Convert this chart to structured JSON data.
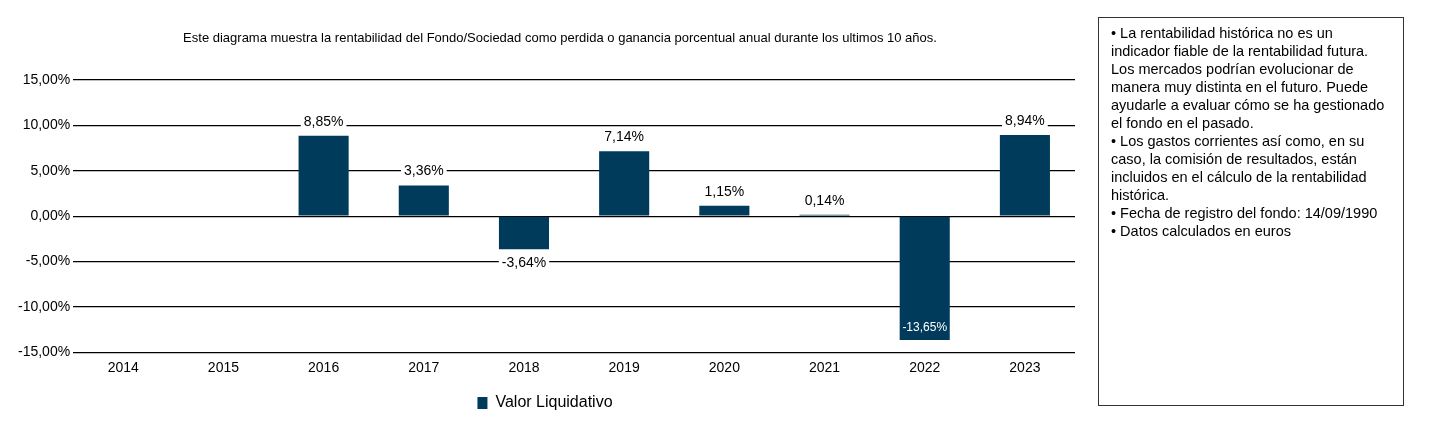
{
  "chart_data": {
    "type": "bar",
    "title": "Este diagrama  muestra la rentabilidad  del Fondo/Sociedad como perdida  o ganancia  porcentual anual  durante los ultimos 10 años.",
    "categories": [
      "2014",
      "2015",
      "2016",
      "2017",
      "2018",
      "2019",
      "2020",
      "2021",
      "2022",
      "2023"
    ],
    "series": [
      {
        "name": "Valor Liquidativo",
        "color": "#003b5c",
        "values": [
          null,
          null,
          8.85,
          3.36,
          -3.64,
          7.14,
          1.15,
          0.14,
          -13.65,
          8.94
        ],
        "value_labels": [
          null,
          null,
          "8,85%",
          "3,36%",
          "-3,64%",
          "7,14%",
          "1,15%",
          "0,14%",
          "-13,65%",
          "8,94%"
        ]
      }
    ],
    "ylim": [
      -15,
      15
    ],
    "yticks": [
      {
        "value": -15,
        "label": "-15,00%"
      },
      {
        "value": -10,
        "label": "-10,00%"
      },
      {
        "value": -5,
        "label": "-5,00%"
      },
      {
        "value": 0,
        "label": "0,00%"
      },
      {
        "value": 5,
        "label": "5,00%"
      },
      {
        "value": 10,
        "label": "10,00%"
      },
      {
        "value": 15,
        "label": "15,00%"
      }
    ],
    "grid": "y",
    "legend": "bottom",
    "annotations": [
      "• La rentabilidad histórica no es un indicador fiable de la rentabilidad futura. Los mercados podrían evolucionar de manera muy distinta en el futuro. Puede ayudarle a evaluar cómo se ha gestionado el fondo en el pasado.",
      "• Los gastos corrientes así como, en su caso, la comisión de resultados, están incluidos en el cálculo de la rentabilidad histórica.",
      "• Fecha de registro del fondo: 14/09/1990",
      "• Datos calculados en euros"
    ]
  }
}
